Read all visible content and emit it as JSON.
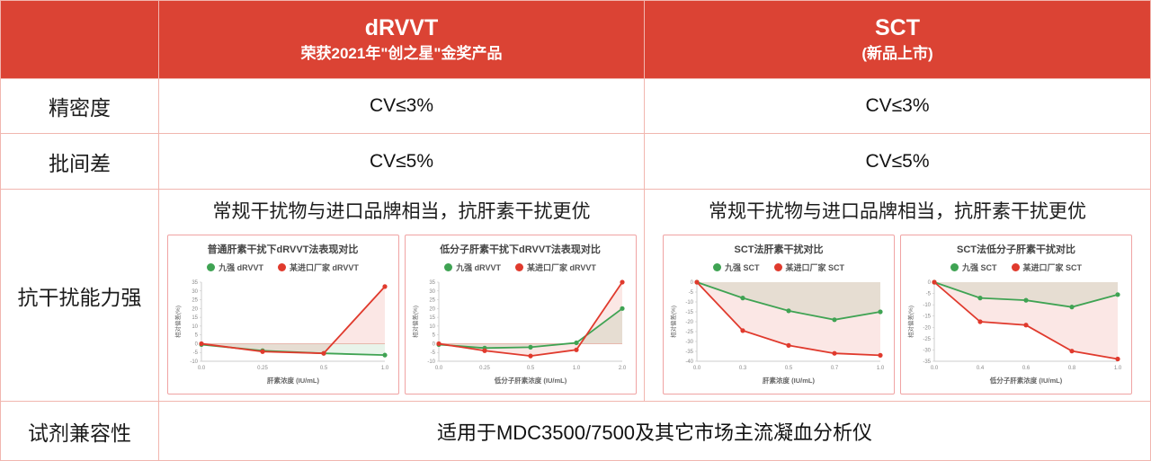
{
  "colors": {
    "header_bg": "#db4334",
    "header_text": "#ffffff",
    "table_border": "#f1b6af",
    "chart_border": "#f0a3a3",
    "series_green": "#3fa353",
    "series_red": "#e03a2d"
  },
  "header": {
    "drvvt": {
      "title": "dRVVT",
      "subtitle": "荣获2021年\"创之星\"金奖产品"
    },
    "sct": {
      "title": "SCT",
      "subtitle": "(新品上市)"
    }
  },
  "rows": {
    "precision": {
      "label": "精密度",
      "drvvt": "CV≤3%",
      "sct": "CV≤3%"
    },
    "batch": {
      "label": "批间差",
      "drvvt": "CV≤5%",
      "sct": "CV≤5%"
    },
    "interference": {
      "label": "抗干扰能力强",
      "drvvt_note": "常规干扰物与进口品牌相当，抗肝素干扰更优",
      "sct_note": "常规干扰物与进口品牌相当，抗肝素干扰更优"
    },
    "compatibility": {
      "label": "试剂兼容性",
      "value": "适用于MDC3500/7500及其它市场主流凝血分析仪"
    }
  },
  "chart_data": [
    {
      "type": "line",
      "title": "普通肝素干扰下dRVVT法表现对比",
      "xlabel": "肝素浓度 (IU/mL)",
      "ylabel": "相对偏差(%)",
      "x": [
        "0.0",
        "0.25",
        "0.5",
        "1.0"
      ],
      "ylim": [
        -10,
        35
      ],
      "ytick": 5,
      "legend_position": "top",
      "grid": false,
      "series": [
        {
          "name": "九强 dRVVT",
          "color": "#3fa353",
          "values": [
            -0.5,
            -4,
            -5.5,
            -6.5
          ]
        },
        {
          "name": "某进口厂家 dRVVT",
          "color": "#e03a2d",
          "values": [
            0,
            -4.5,
            -5.5,
            32.5
          ]
        }
      ]
    },
    {
      "type": "line",
      "title": "低分子肝素干扰下dRVVT法表现对比",
      "xlabel": "低分子肝素浓度 (IU/mL)",
      "ylabel": "相对偏差(%)",
      "x": [
        "0.0",
        "0.25",
        "0.5",
        "1.0",
        "2.0"
      ],
      "ylim": [
        -10,
        35
      ],
      "ytick": 5,
      "legend_position": "top",
      "grid": false,
      "series": [
        {
          "name": "九强 dRVVT",
          "color": "#3fa353",
          "values": [
            -0.5,
            -2.5,
            -2,
            0.5,
            20
          ]
        },
        {
          "name": "某进口厂家 dRVVT",
          "color": "#e03a2d",
          "values": [
            0,
            -4,
            -7,
            -3.5,
            35
          ]
        }
      ]
    },
    {
      "type": "line",
      "title": "SCT法肝素干扰对比",
      "xlabel": "肝素浓度 (IU/mL)",
      "ylabel": "相对偏差(%)",
      "x": [
        "0.0",
        "0.3",
        "0.5",
        "0.7",
        "1.0"
      ],
      "ylim": [
        -40,
        0
      ],
      "ytick": 5,
      "legend_position": "top",
      "grid": false,
      "series": [
        {
          "name": "九强 SCT",
          "color": "#3fa353",
          "values": [
            0,
            -8,
            -14.5,
            -19,
            -15
          ]
        },
        {
          "name": "某进口厂家 SCT",
          "color": "#e03a2d",
          "values": [
            0,
            -24.5,
            -32,
            -36,
            -37
          ]
        }
      ]
    },
    {
      "type": "line",
      "title": "SCT法低分子肝素干扰对比",
      "xlabel": "低分子肝素浓度 (IU/mL)",
      "ylabel": "相对偏差(%)",
      "x": [
        "0.0",
        "0.4",
        "0.6",
        "0.8",
        "1.0"
      ],
      "ylim": [
        -35,
        0
      ],
      "ytick": 5,
      "legend_position": "top",
      "grid": false,
      "series": [
        {
          "name": "九强 SCT",
          "color": "#3fa353",
          "values": [
            0,
            -7,
            -8,
            -11,
            -5.5
          ]
        },
        {
          "name": "某进口厂家 SCT",
          "color": "#e03a2d",
          "values": [
            0,
            -17.5,
            -19,
            -30.5,
            -34
          ]
        }
      ]
    }
  ]
}
